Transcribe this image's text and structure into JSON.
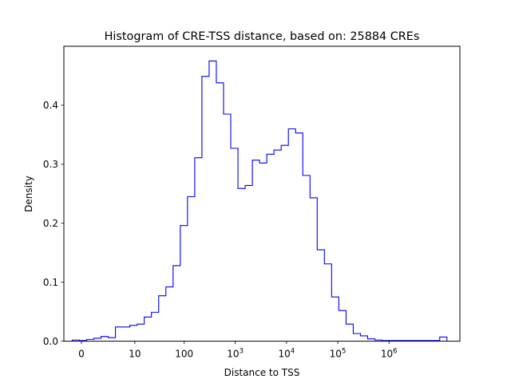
{
  "chart_data": {
    "type": "histogram",
    "title": "Histogram of CRE-TSS distance, based on: 25884 CREs",
    "xlabel": "Distance to TSS",
    "ylabel": "Density",
    "x_scale": "symlog",
    "ylim": [
      0,
      0.5
    ],
    "grid": false,
    "legend": "none",
    "color": "#0000ff",
    "x_ticks": [
      {
        "value": 0,
        "label": "0"
      },
      {
        "value": 10,
        "label": "10"
      },
      {
        "value": 100,
        "label": "100"
      },
      {
        "value": 1000,
        "base": "10",
        "exp": "3"
      },
      {
        "value": 10000,
        "base": "10",
        "exp": "4"
      },
      {
        "value": 100000,
        "base": "10",
        "exp": "5"
      },
      {
        "value": 1000000,
        "base": "10",
        "exp": "6"
      }
    ],
    "y_ticks": [
      {
        "value": 0.0,
        "label": "0.0"
      },
      {
        "value": 0.1,
        "label": "0.1"
      },
      {
        "value": 0.2,
        "label": "0.2"
      },
      {
        "value": 0.3,
        "label": "0.3"
      },
      {
        "value": 0.4,
        "label": "0.4"
      }
    ],
    "bins": {
      "start_log10": -0.18,
      "end_log10": 7.13,
      "densities": [
        0.002,
        0.001,
        0.003,
        0.005,
        0.008,
        0.006,
        0.024,
        0.024,
        0.027,
        0.029,
        0.041,
        0.049,
        0.077,
        0.092,
        0.128,
        0.196,
        0.245,
        0.311,
        0.449,
        0.475,
        0.438,
        0.385,
        0.327,
        0.259,
        0.264,
        0.307,
        0.302,
        0.317,
        0.324,
        0.332,
        0.36,
        0.353,
        0.281,
        0.243,
        0.155,
        0.131,
        0.075,
        0.052,
        0.029,
        0.013,
        0.009,
        0.004,
        0.002,
        0.001,
        0.001,
        0.001,
        0.001,
        0.001,
        0.001,
        0.001,
        0.001,
        0.007
      ]
    }
  }
}
